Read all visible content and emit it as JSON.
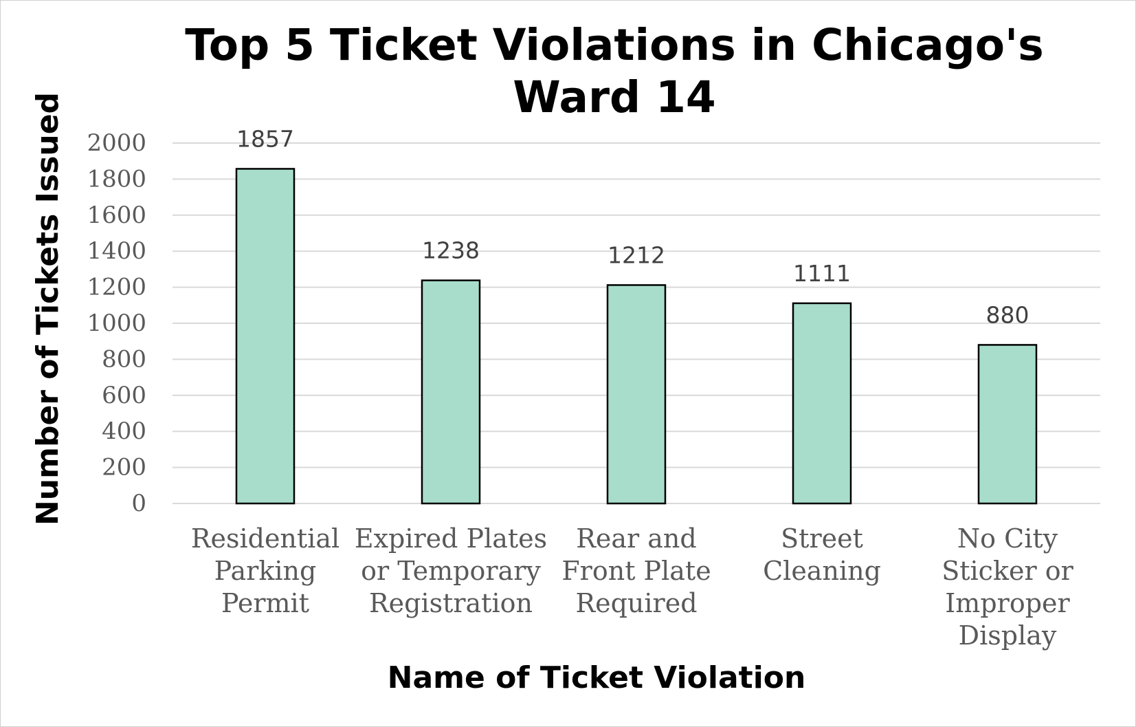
{
  "chart_data": {
    "type": "bar",
    "title": "Top 5 Ticket Violations in Chicago's Ward 14",
    "title_lines": [
      "Top 5 Ticket Violations in Chicago's",
      "Ward 14"
    ],
    "xlabel": "Name of Ticket Violation",
    "ylabel": "Number of Tickets Issued",
    "categories": [
      "Residential Parking Permit",
      "Expired Plates or Temporary Registration",
      "Rear and Front Plate Required",
      "Street Cleaning",
      "No City Sticker or Improper Display"
    ],
    "category_lines": [
      [
        "Residential",
        "Parking",
        "Permit"
      ],
      [
        "Expired Plates",
        "or Temporary",
        "Registration"
      ],
      [
        "Rear and",
        "Front Plate",
        "Required"
      ],
      [
        "Street",
        "Cleaning"
      ],
      [
        "No City",
        "Sticker or",
        "Improper",
        "Display"
      ]
    ],
    "values": [
      1857,
      1238,
      1212,
      1111,
      880
    ],
    "data_labels": [
      "1857",
      "1238",
      "1212",
      "1111",
      "880"
    ],
    "ylim": [
      0,
      2000
    ],
    "yticks": [
      0,
      200,
      400,
      600,
      800,
      1000,
      1200,
      1400,
      1600,
      1800,
      2000
    ],
    "grid": true,
    "legend": "none",
    "colors": {
      "bar_fill": "#a8ddcc",
      "bar_stroke": "#000000",
      "gridline": "#d9d9d9"
    }
  }
}
